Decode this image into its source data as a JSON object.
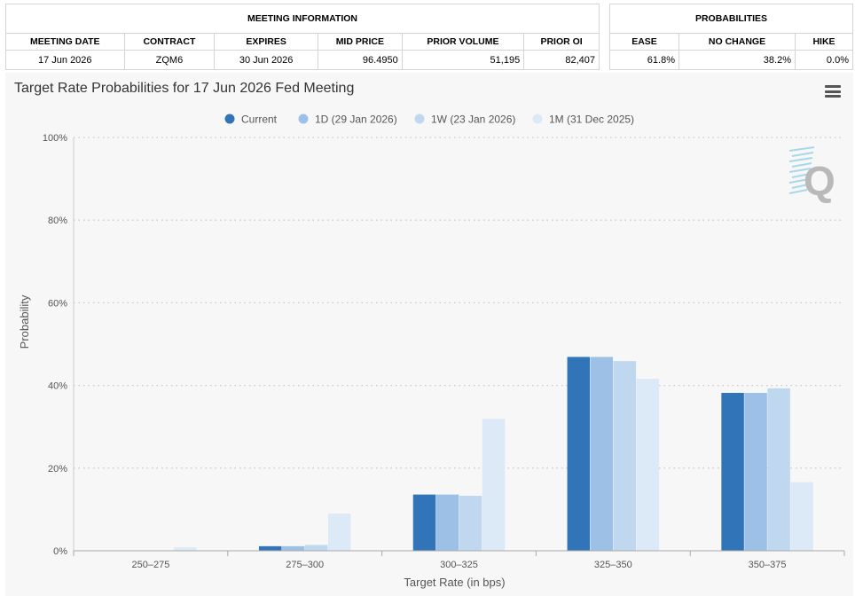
{
  "meeting_info": {
    "group_title": "MEETING INFORMATION",
    "headers": [
      "MEETING DATE",
      "CONTRACT",
      "EXPIRES",
      "MID PRICE",
      "PRIOR VOLUME",
      "PRIOR OI"
    ],
    "values": [
      "17 Jun 2026",
      "ZQM6",
      "30 Jun 2026",
      "96.4950",
      "51,195",
      "82,407"
    ]
  },
  "probabilities": {
    "group_title": "PROBABILITIES",
    "headers": [
      "EASE",
      "NO CHANGE",
      "HIKE"
    ],
    "values": [
      "61.8%",
      "38.2%",
      "0.0%"
    ]
  },
  "colors": {
    "current": "#3174b8",
    "d1": "#9dc1e6",
    "w1": "#bfd8f0",
    "m1": "#dce9f6",
    "logo": "#b9b9b9",
    "logo_accent": "#a8d8e8"
  },
  "chart_data": {
    "type": "bar",
    "title": "Target Rate Probabilities for 17 Jun 2026 Fed Meeting",
    "xlabel": "Target Rate (in bps)",
    "ylabel": "Probability",
    "ylim": [
      0,
      100
    ],
    "yticks": [
      0,
      20,
      40,
      60,
      80,
      100
    ],
    "ytick_labels": [
      "0%",
      "20%",
      "40%",
      "60%",
      "80%",
      "100%"
    ],
    "grid": true,
    "legend_position": "top-center",
    "categories": [
      "250-275",
      "275-300",
      "300-325",
      "325-350",
      "350-375"
    ],
    "series": [
      {
        "name": "Current",
        "color_key": "current",
        "values": [
          0,
          1.1,
          13.6,
          46.9,
          38.2
        ]
      },
      {
        "name": "1D (29 Jan 2026)",
        "color_key": "d1",
        "values": [
          0,
          1.1,
          13.6,
          46.9,
          38.2
        ]
      },
      {
        "name": "1W (23 Jan 2026)",
        "color_key": "w1",
        "values": [
          0,
          1.4,
          13.3,
          45.9,
          39.3
        ]
      },
      {
        "name": "1M (31 Dec 2025)",
        "color_key": "m1",
        "values": [
          0.8,
          9.0,
          31.9,
          41.6,
          16.6
        ]
      }
    ]
  }
}
